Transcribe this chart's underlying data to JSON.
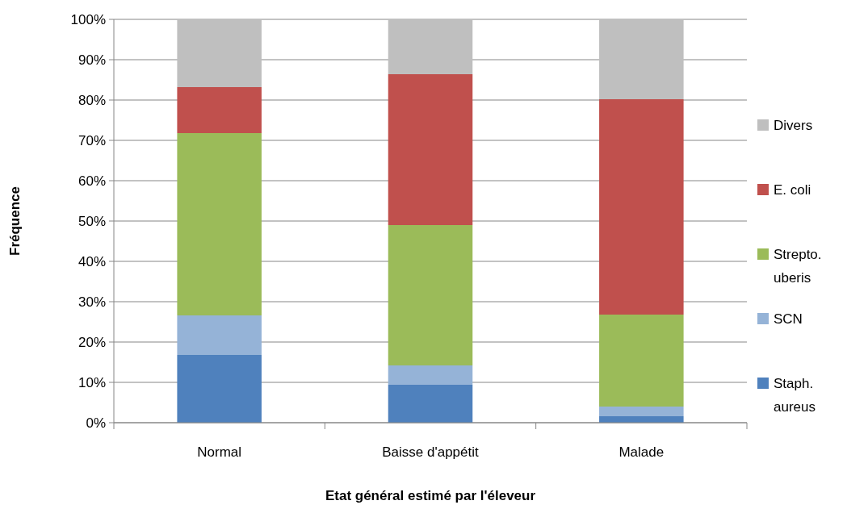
{
  "chart_data": {
    "type": "bar",
    "stacked": true,
    "xlabel": "Etat général estimé par l'éleveur",
    "ylabel": "Fréquence",
    "categories": [
      "Normal",
      "Baisse d'appétit",
      "Malade"
    ],
    "series": [
      {
        "name": "Staph. aureus",
        "color": "#4f81bd",
        "values": [
          16.8,
          9.4,
          1.6
        ]
      },
      {
        "name": "SCN",
        "color": "#95b3d7",
        "values": [
          9.8,
          4.8,
          2.4
        ]
      },
      {
        "name": "Strepto. uberis",
        "color": "#9bbb59",
        "values": [
          45.2,
          34.8,
          22.8
        ]
      },
      {
        "name": "E. coli",
        "color": "#c0504d",
        "values": [
          11.4,
          37.4,
          53.4
        ]
      },
      {
        "name": "Divers",
        "color": "#bfbfbf",
        "values": [
          16.8,
          13.6,
          19.8
        ]
      }
    ],
    "ylim": [
      0,
      100
    ],
    "yticks": [
      {
        "value": 0,
        "label": "0%"
      },
      {
        "value": 10,
        "label": "10%"
      },
      {
        "value": 20,
        "label": "20%"
      },
      {
        "value": 30,
        "label": "30%"
      },
      {
        "value": 40,
        "label": "40%"
      },
      {
        "value": 50,
        "label": "50%"
      },
      {
        "value": 60,
        "label": "60%"
      },
      {
        "value": 70,
        "label": "70%"
      },
      {
        "value": 80,
        "label": "80%"
      },
      {
        "value": 90,
        "label": "90%"
      },
      {
        "value": 100,
        "label": "100%"
      }
    ],
    "grid": "y",
    "legend": "right"
  }
}
